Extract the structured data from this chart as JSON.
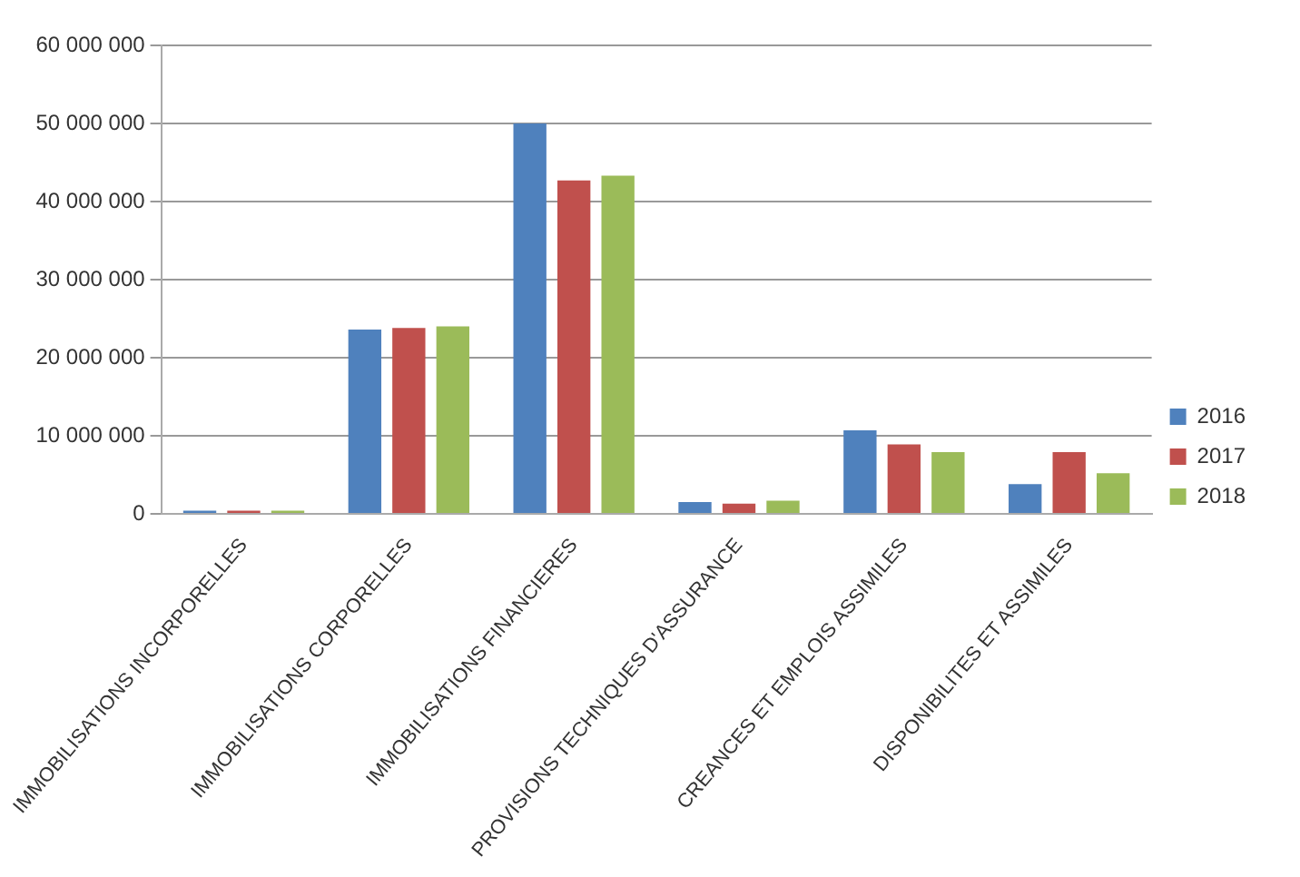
{
  "chart_data": {
    "type": "bar",
    "categories": [
      "IMMOBILISATIONS INCORPORELLES",
      "IMMOBILISATIONS CORPORELLES",
      "IMMOBILISATIONS FINANCIERES",
      "PROVISIONS TECHNIQUES D'ASSURANCE",
      "CREANCES ET EMPLOIS ASSIMILES",
      "DISPONIBILITES ET ASSIMILES"
    ],
    "series": [
      {
        "name": "2016",
        "color": "#4f81bd",
        "values": [
          400000,
          23600000,
          50000000,
          1500000,
          10700000,
          3800000
        ]
      },
      {
        "name": "2017",
        "color": "#c0504d",
        "values": [
          400000,
          23800000,
          42700000,
          1300000,
          8900000,
          7900000
        ]
      },
      {
        "name": "2018",
        "color": "#9bbb59",
        "values": [
          400000,
          24000000,
          43300000,
          1700000,
          7900000,
          5200000
        ]
      }
    ],
    "ylim": [
      0,
      60000000
    ],
    "yticks": [
      {
        "value": 0,
        "label": "0"
      },
      {
        "value": 10000000,
        "label": "10 000 000"
      },
      {
        "value": 20000000,
        "label": "20 000 000"
      },
      {
        "value": 30000000,
        "label": "30 000 000"
      },
      {
        "value": 40000000,
        "label": "40 000 000"
      },
      {
        "value": 50000000,
        "label": "50 000 000"
      },
      {
        "value": 60000000,
        "label": "60 000 000"
      }
    ],
    "grid": "y",
    "legend": "right"
  }
}
